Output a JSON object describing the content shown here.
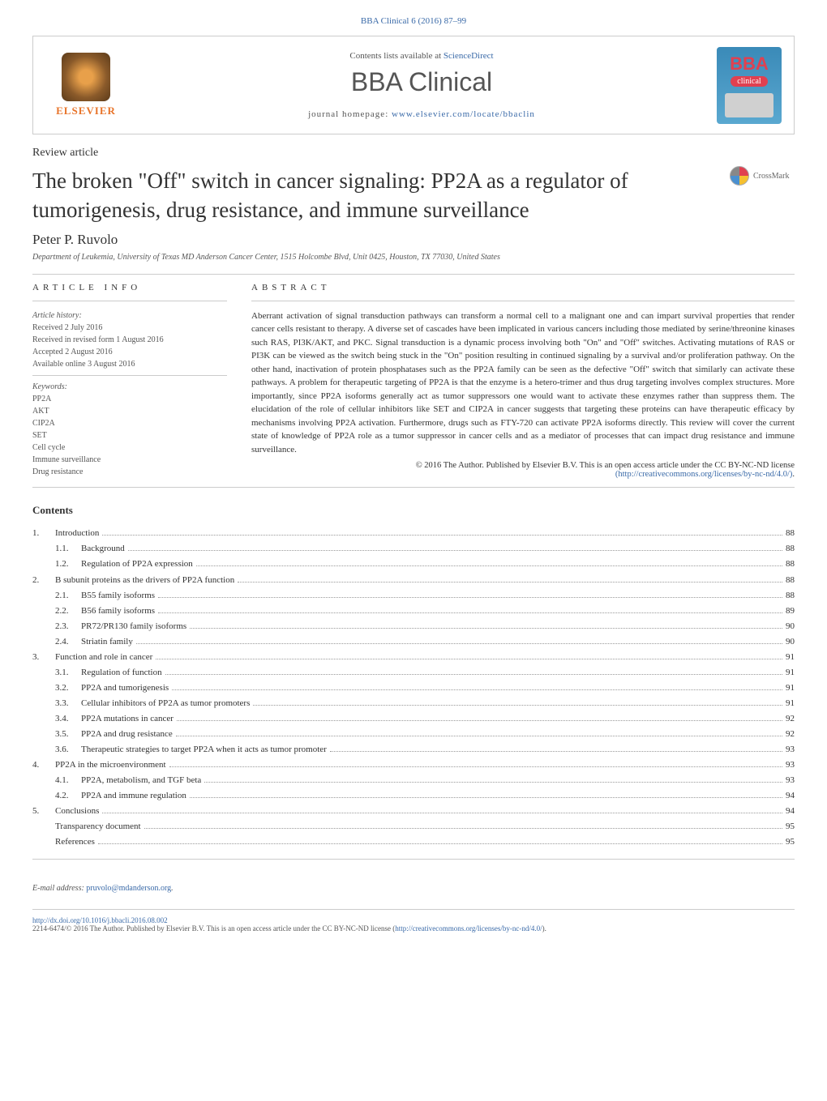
{
  "header_link": "BBA Clinical 6 (2016) 87–99",
  "banner": {
    "elsevier": "ELSEVIER",
    "contents": "Contents lists available at ",
    "contents_link": "ScienceDirect",
    "journal": "BBA Clinical",
    "homepage_label": "journal homepage: ",
    "homepage_url": "www.elsevier.com/locate/bbaclin",
    "bba": "BBA",
    "bba_sub": "clinical"
  },
  "article_type": "Review article",
  "title": "The broken \"Off\" switch in cancer signaling: PP2A as a regulator of tumorigenesis, drug resistance, and immune surveillance",
  "crossmark": "CrossMark",
  "author": "Peter P. Ruvolo",
  "affiliation": "Department of Leukemia, University of Texas MD Anderson Cancer Center, 1515 Holcombe Blvd, Unit 0425, Houston, TX 77030, United States",
  "info_head": "ARTICLE INFO",
  "abstract_head": "ABSTRACT",
  "history": {
    "label": "Article history:",
    "received": "Received 2 July 2016",
    "revised": "Received in revised form 1 August 2016",
    "accepted": "Accepted 2 August 2016",
    "online": "Available online 3 August 2016"
  },
  "keywords": {
    "label": "Keywords:",
    "items": [
      "PP2A",
      "AKT",
      "CIP2A",
      "SET",
      "Cell cycle",
      "Immune surveillance",
      "Drug resistance"
    ]
  },
  "abstract": "Aberrant activation of signal transduction pathways can transform a normal cell to a malignant one and can impart survival properties that render cancer cells resistant to therapy. A diverse set of cascades have been implicated in various cancers including those mediated by serine/threonine kinases such RAS, PI3K/AKT, and PKC. Signal transduction is a dynamic process involving both \"On\" and \"Off\" switches. Activating mutations of RAS or PI3K can be viewed as the switch being stuck in the \"On\" position resulting in continued signaling by a survival and/or proliferation pathway. On the other hand, inactivation of protein phosphatases such as the PP2A family can be seen as the defective \"Off\" switch that similarly can activate these pathways. A problem for therapeutic targeting of PP2A is that the enzyme is a hetero-trimer and thus drug targeting involves complex structures. More importantly, since PP2A isoforms generally act as tumor suppressors one would want to activate these enzymes rather than suppress them. The elucidation of the role of cellular inhibitors like SET and CIP2A in cancer suggests that targeting these proteins can have therapeutic efficacy by mechanisms involving PP2A activation. Furthermore, drugs such as FTY-720 can activate PP2A isoforms directly. This review will cover the current state of knowledge of PP2A role as a tumor suppressor in cancer cells and as a mediator of processes that can impact drug resistance and immune surveillance.",
  "copyright": "© 2016 The Author. Published by Elsevier B.V. This is an open access article under the CC BY-NC-ND license",
  "copyright_link": "(http://creativecommons.org/licenses/by-nc-nd/4.0/)",
  "contents_title": "Contents",
  "toc": [
    {
      "num": "1.",
      "text": "Introduction",
      "page": "88",
      "level": 1
    },
    {
      "num": "1.1.",
      "text": "Background",
      "page": "88",
      "level": 2
    },
    {
      "num": "1.2.",
      "text": "Regulation of PP2A expression",
      "page": "88",
      "level": 2
    },
    {
      "num": "2.",
      "text": "B subunit proteins as the drivers of PP2A function",
      "page": "88",
      "level": 1
    },
    {
      "num": "2.1.",
      "text": "B55 family isoforms",
      "page": "88",
      "level": 2
    },
    {
      "num": "2.2.",
      "text": "B56 family isoforms",
      "page": "89",
      "level": 2
    },
    {
      "num": "2.3.",
      "text": "PR72/PR130 family isoforms",
      "page": "90",
      "level": 2
    },
    {
      "num": "2.4.",
      "text": "Striatin family",
      "page": "90",
      "level": 2
    },
    {
      "num": "3.",
      "text": "Function and role in cancer",
      "page": "91",
      "level": 1
    },
    {
      "num": "3.1.",
      "text": "Regulation of function",
      "page": "91",
      "level": 2
    },
    {
      "num": "3.2.",
      "text": "PP2A and tumorigenesis",
      "page": "91",
      "level": 2
    },
    {
      "num": "3.3.",
      "text": "Cellular inhibitors of PP2A as tumor promoters",
      "page": "91",
      "level": 2
    },
    {
      "num": "3.4.",
      "text": "PP2A mutations in cancer",
      "page": "92",
      "level": 2
    },
    {
      "num": "3.5.",
      "text": "PP2A and drug resistance",
      "page": "92",
      "level": 2
    },
    {
      "num": "3.6.",
      "text": "Therapeutic strategies to target PP2A when it acts as tumor promoter",
      "page": "93",
      "level": 2
    },
    {
      "num": "4.",
      "text": "PP2A in the microenvironment",
      "page": "93",
      "level": 1
    },
    {
      "num": "4.1.",
      "text": "PP2A, metabolism, and TGF beta",
      "page": "93",
      "level": 2
    },
    {
      "num": "4.2.",
      "text": "PP2A and immune regulation",
      "page": "94",
      "level": 2
    },
    {
      "num": "5.",
      "text": "Conclusions",
      "page": "94",
      "level": 1
    },
    {
      "num": "",
      "text": "Transparency document",
      "page": "95",
      "level": 0
    },
    {
      "num": "",
      "text": "References",
      "page": "95",
      "level": 0
    }
  ],
  "email_label": "E-mail address: ",
  "email": "pruvolo@mdanderson.org",
  "doi": "http://dx.doi.org/10.1016/j.bbacli.2016.08.002",
  "footer_text": "2214-6474/© 2016 The Author. Published by Elsevier B.V. This is an open access article under the CC BY-NC-ND license (",
  "footer_link": "http://creativecommons.org/licenses/by-nc-nd/4.0/",
  "footer_end": ")."
}
